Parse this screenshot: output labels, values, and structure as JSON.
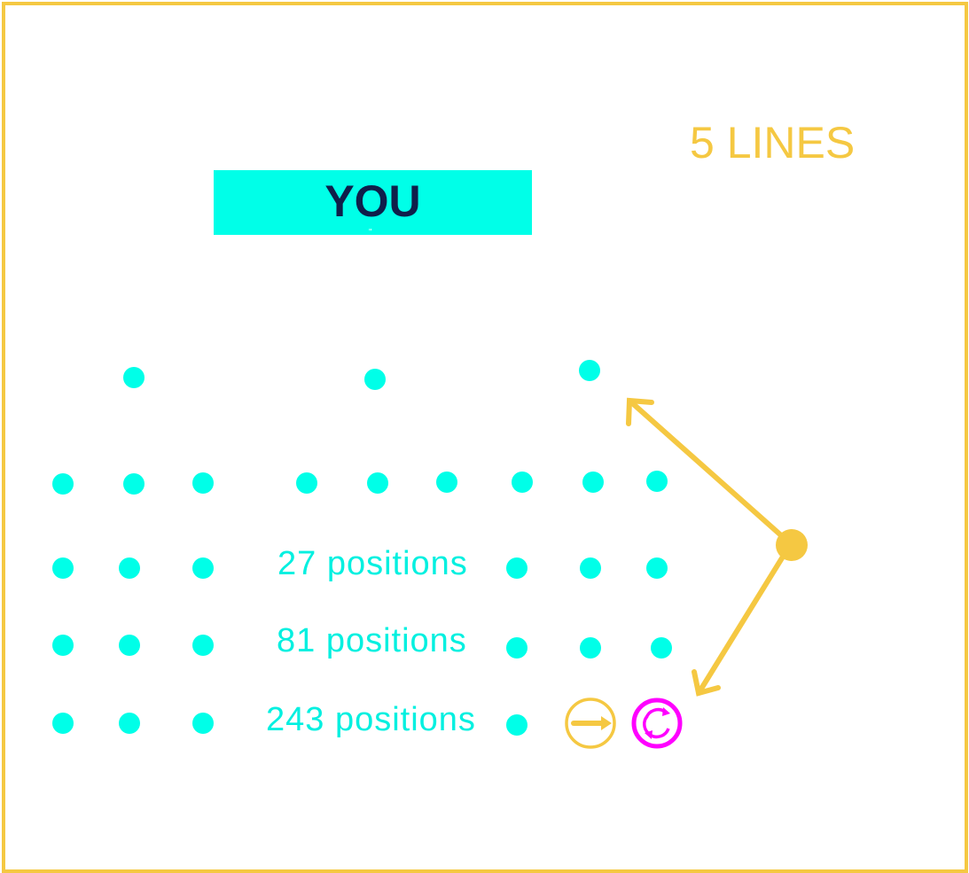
{
  "header": {
    "lines_label": "5 LINES"
  },
  "player": {
    "label": "YOU"
  },
  "position_counts": [
    {
      "label": "27 positions"
    },
    {
      "label": "81 positions"
    },
    {
      "label": "243 positions"
    }
  ],
  "colors": {
    "frame": "#f5c842",
    "dot": "#00ffe8",
    "player_box": "#00ffe8",
    "player_text": "#0f1f4a",
    "arrow": "#f5c842",
    "next_control": "#f5c842",
    "refresh_control": "#ff00ff"
  },
  "controls": {
    "next_icon": "arrow-right-icon",
    "refresh_icon": "refresh-icon"
  }
}
